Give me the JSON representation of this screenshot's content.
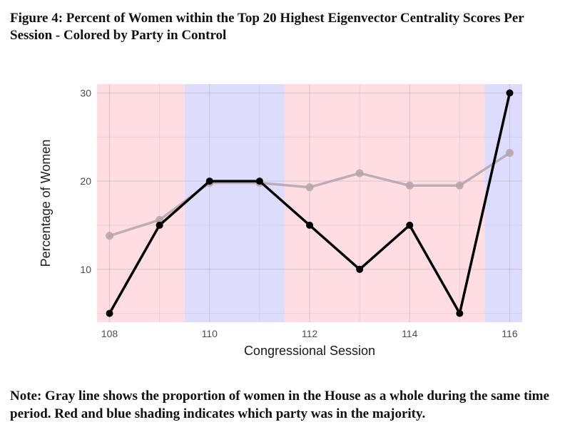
{
  "figure": {
    "title": "Figure 4:  Percent of Women within the Top 20 Highest Eigenvector Centrality Scores Per Session - Colored by Party in Control",
    "note": "Note: Gray line shows the proportion of women in the House as a whole during the same time period. Red and blue shading indicates which party was in the majority."
  },
  "chart_data": {
    "type": "line",
    "xlabel": "Congressional Session",
    "ylabel": "Percentage of Women",
    "x": [
      108,
      109,
      110,
      111,
      112,
      113,
      114,
      115,
      116
    ],
    "xticks": [
      108,
      110,
      112,
      114,
      116
    ],
    "yticks": [
      10,
      20,
      30
    ],
    "xlim": [
      107.75,
      116.25
    ],
    "ylim": [
      4,
      31
    ],
    "grid": true,
    "series": [
      {
        "values": [
          13.8,
          15.6,
          19.8,
          19.8,
          19.3,
          20.9,
          19.5,
          19.5,
          23.2
        ],
        "color": "#b3a5aa"
      },
      {
        "values": [
          5,
          15,
          20,
          20,
          15,
          10,
          15,
          5,
          30
        ],
        "color": "#000000"
      }
    ],
    "shading": [
      {
        "from": 107.75,
        "to": 109.5,
        "party": "red",
        "color": "#ffdde2"
      },
      {
        "from": 109.5,
        "to": 111.5,
        "party": "blue",
        "color": "#dddcfd"
      },
      {
        "from": 111.5,
        "to": 115.5,
        "party": "red",
        "color": "#ffdde2"
      },
      {
        "from": 115.5,
        "to": 116.25,
        "party": "blue",
        "color": "#dddcfd"
      }
    ]
  }
}
